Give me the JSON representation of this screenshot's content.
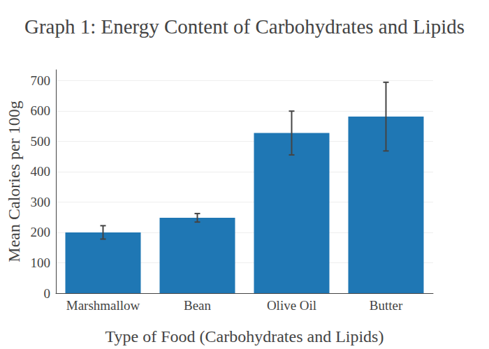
{
  "chart_data": {
    "type": "bar",
    "title": "Graph 1: Energy Content of Carbohydrates and Lipids",
    "x_label": "Type of Food (Carbohydrates and Lipids)",
    "y_label": "Mean Calories per 100g",
    "categories": [
      "Marshmallow",
      "Bean",
      "Olive Oil",
      "Butter"
    ],
    "values": [
      200,
      248,
      527,
      581
    ],
    "errors": [
      22,
      14,
      72,
      113
    ],
    "color": "#1f77b4",
    "ylim": [
      0,
      735
    ],
    "yticks": [
      0,
      100,
      200,
      300,
      400,
      500,
      600,
      700
    ],
    "grid": true
  }
}
